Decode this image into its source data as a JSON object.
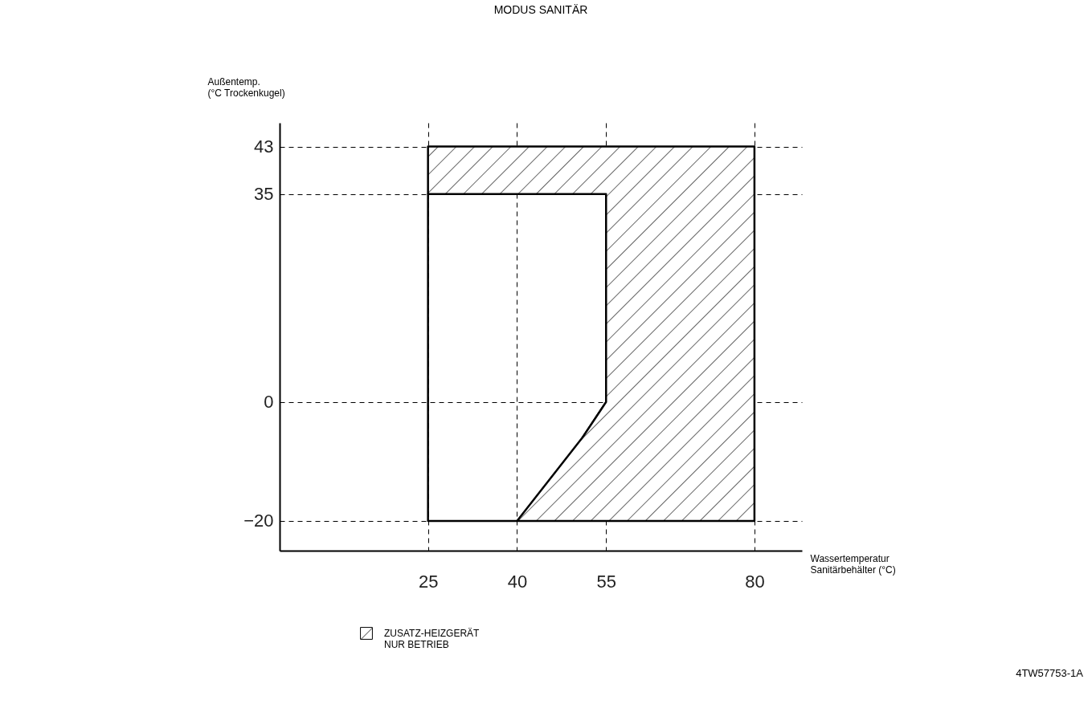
{
  "chart_data": {
    "type": "line",
    "title": "MODUS SANITÄR",
    "xlabel": "Wassertemperatur\nSanitärbehälter (°C)",
    "ylabel": "Außentemp.\n(°C Trockenkugel)",
    "xlim": [
      0,
      88
    ],
    "ylim": [
      -25,
      47
    ],
    "xticks": [
      25,
      40,
      55,
      80
    ],
    "yticks": [
      -20,
      0,
      35,
      43
    ],
    "grid": true,
    "line_style": "solid",
    "legend": "bottom",
    "annotations": [
      "4TW57753-1A"
    ],
    "series": [
      {
        "color": "#000000",
        "x": [
          40,
          25,
          25,
          55,
          55,
          51
        ],
        "values": [
          -20,
          -20,
          35,
          35,
          0,
          -6
        ]
      },
      {
        "type": "area",
        "name": "ZUSATZ-HEIZGERÄT\nNUR BETRIEB",
        "color": "#000000",
        "x": [
          25,
          25,
          80,
          80,
          40,
          51,
          55,
          55,
          25
        ],
        "values": [
          35,
          43,
          43,
          -20,
          -20,
          -6,
          0,
          35,
          35
        ]
      }
    ]
  }
}
